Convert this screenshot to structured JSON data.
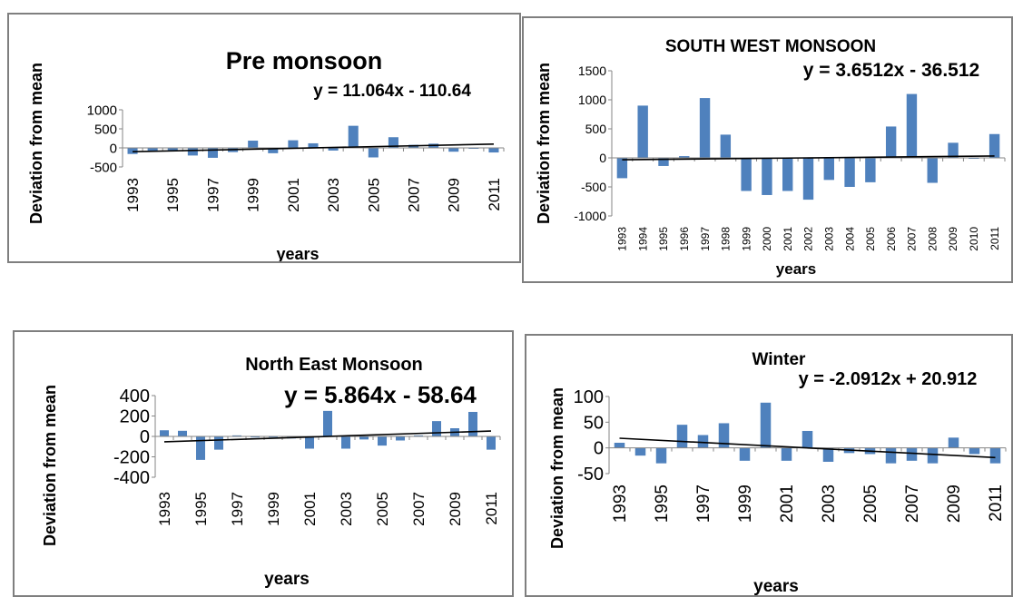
{
  "chart_data": [
    {
      "type": "bar",
      "title": "Pre monsoon",
      "equation": "y = 11.064x - 110.64",
      "xlabel": "years",
      "ylabel": "Deviation from mean",
      "categories": [
        "1993",
        "1994",
        "1995",
        "1996",
        "1997",
        "1998",
        "1999",
        "2000",
        "2001",
        "2002",
        "2003",
        "2004",
        "2005",
        "2006",
        "2007",
        "2008",
        "2009",
        "2010",
        "2011"
      ],
      "tick_labels_x": [
        "1993",
        "1995",
        "1997",
        "1999",
        "2001",
        "2003",
        "2005",
        "2007",
        "2009",
        "2011"
      ],
      "yticks": [
        "1000",
        "500",
        "0",
        "-500"
      ],
      "ylim": [
        -500,
        1000
      ],
      "values": [
        -160,
        -100,
        -60,
        -200,
        -260,
        -110,
        190,
        -140,
        200,
        120,
        -70,
        580,
        -250,
        280,
        80,
        110,
        -100,
        -20,
        -120
      ],
      "trendline": {
        "slope": 11.064,
        "intercept": -110.64
      },
      "bar_color": "#4f81bd"
    },
    {
      "type": "bar",
      "title": "SOUTH WEST MONSOON",
      "equation": "y = 3.6512x - 36.512",
      "xlabel": "years",
      "ylabel": "Deviation from mean",
      "categories": [
        "1993",
        "1994",
        "1995",
        "1996",
        "1997",
        "1998",
        "1999",
        "2000",
        "2001",
        "2002",
        "2003",
        "2004",
        "2005",
        "2006",
        "2007",
        "2008",
        "2009",
        "2010",
        "2011"
      ],
      "tick_labels_x": [
        "1993",
        "1994",
        "1995",
        "1996",
        "1997",
        "1998",
        "1999",
        "2000",
        "2001",
        "2002",
        "2003",
        "2004",
        "2005",
        "2006",
        "2007",
        "2008",
        "2009",
        "2010",
        "2011"
      ],
      "yticks": [
        "1500",
        "1000",
        "500",
        "0",
        "-500",
        "-1000"
      ],
      "ylim": [
        -1000,
        1500
      ],
      "values": [
        -350,
        900,
        -140,
        30,
        1030,
        400,
        -570,
        -640,
        -570,
        -720,
        -380,
        -500,
        -420,
        540,
        1100,
        -430,
        260,
        0,
        410
      ],
      "trendline": {
        "slope": 3.6512,
        "intercept": -36.512
      },
      "bar_color": "#4f81bd"
    },
    {
      "type": "bar",
      "title": "North East Monsoon",
      "equation": "y = 5.864x - 58.64",
      "xlabel": "years",
      "ylabel": "Deviation from mean",
      "categories": [
        "1993",
        "1994",
        "1995",
        "1996",
        "1997",
        "1998",
        "1999",
        "2000",
        "2001",
        "2002",
        "2003",
        "2004",
        "2005",
        "2006",
        "2007",
        "2008",
        "2009",
        "2010",
        "2011"
      ],
      "tick_labels_x": [
        "1993",
        "1995",
        "1997",
        "1999",
        "2001",
        "2003",
        "2005",
        "2007",
        "2009",
        "2011"
      ],
      "yticks": [
        "400",
        "200",
        "0",
        "-200",
        "-400"
      ],
      "ylim": [
        -400,
        400
      ],
      "values": [
        60,
        55,
        -230,
        -130,
        10,
        -10,
        -10,
        -20,
        -120,
        250,
        -120,
        -30,
        -90,
        -40,
        10,
        150,
        80,
        240,
        -130
      ],
      "trendline": {
        "slope": 5.864,
        "intercept": -58.64
      },
      "bar_color": "#4f81bd"
    },
    {
      "type": "bar",
      "title": "Winter",
      "equation": "y = -2.0912x + 20.912",
      "xlabel": "years",
      "ylabel": "Deviation from mean",
      "categories": [
        "1993",
        "1994",
        "1995",
        "1996",
        "1997",
        "1998",
        "1999",
        "2000",
        "2001",
        "2002",
        "2003",
        "2004",
        "2005",
        "2006",
        "2007",
        "2008",
        "2009",
        "2010",
        "2011"
      ],
      "tick_labels_x": [
        "1993",
        "1995",
        "1997",
        "1999",
        "2001",
        "2003",
        "2005",
        "2007",
        "2009",
        "2011"
      ],
      "yticks": [
        "100",
        "50",
        "0",
        "-50"
      ],
      "ylim": [
        -50,
        100
      ],
      "values": [
        10,
        -15,
        -30,
        45,
        25,
        48,
        -25,
        88,
        -25,
        33,
        -27,
        -10,
        -12,
        -30,
        -25,
        -30,
        20,
        -12,
        -30
      ],
      "trendline": {
        "slope": -2.0912,
        "intercept": 20.912
      },
      "bar_color": "#4f81bd"
    }
  ]
}
